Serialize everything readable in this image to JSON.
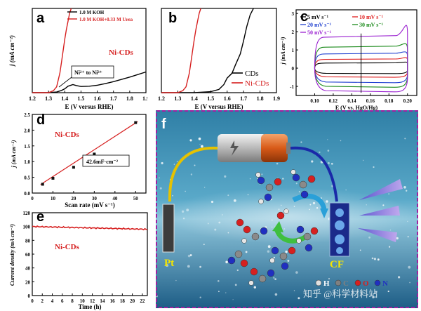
{
  "chart_data": [
    {
      "panel": "a",
      "type": "line",
      "xlabel": "E (V versus RHE)",
      "ylabel": "j (mA cm⁻²)",
      "xlim": [
        1.2,
        1.9
      ],
      "ylim": [
        0,
        260
      ],
      "xticks": [
        "1.2",
        "1.3",
        "1.4",
        "1.5",
        "1.6",
        "1.7",
        "1.8",
        "1.9"
      ],
      "legend": [
        "1.0 M KOH",
        "1.0 M KOH+0.33 M Urea"
      ],
      "legend_position": "top-left",
      "annotation": "Ni²⁺ to Ni³⁺",
      "sample_label": "Ni-CDs",
      "series": [
        {
          "name": "1.0 M KOH",
          "color": "#000000",
          "x": [
            1.2,
            1.3,
            1.35,
            1.38,
            1.4,
            1.42,
            1.45,
            1.47,
            1.5,
            1.55,
            1.6,
            1.65,
            1.7,
            1.75,
            1.8,
            1.85,
            1.9
          ],
          "y": [
            0,
            0,
            2,
            7,
            12,
            20,
            25,
            22,
            19,
            20,
            23,
            28,
            34,
            41,
            48,
            56,
            64
          ]
        },
        {
          "name": "1.0 M KOH+0.33 M Urea",
          "color": "#d62020",
          "x": [
            1.2,
            1.3,
            1.33,
            1.35,
            1.37,
            1.38,
            1.39,
            1.4,
            1.41,
            1.42,
            1.43,
            1.44
          ],
          "y": [
            0,
            0,
            6,
            18,
            60,
            95,
            130,
            165,
            195,
            220,
            245,
            260
          ]
        }
      ]
    },
    {
      "panel": "b",
      "type": "line",
      "xlabel": "E (V versus RHE)",
      "xlim": [
        1.2,
        1.9
      ],
      "ylim": [
        0,
        260
      ],
      "xticks": [
        "1.2",
        "1.3",
        "1.4",
        "1.5",
        "1.6",
        "1.7",
        "1.8",
        "1.9"
      ],
      "legend": [
        "CDs",
        "Ni-CDs"
      ],
      "legend_position": "bottom-right",
      "series": [
        {
          "name": "CDs",
          "color": "#000000",
          "x": [
            1.2,
            1.4,
            1.5,
            1.55,
            1.58,
            1.6,
            1.63,
            1.65,
            1.68,
            1.7,
            1.72,
            1.74,
            1.76
          ],
          "y": [
            0,
            0,
            3,
            10,
            25,
            45,
            60,
            85,
            120,
            160,
            205,
            240,
            260
          ]
        },
        {
          "name": "Ni-CDs",
          "color": "#d62020",
          "x": [
            1.2,
            1.3,
            1.33,
            1.35,
            1.37,
            1.38,
            1.39,
            1.4,
            1.41,
            1.42,
            1.43,
            1.44
          ],
          "y": [
            0,
            0,
            6,
            18,
            60,
            95,
            130,
            165,
            195,
            220,
            245,
            260
          ]
        }
      ]
    },
    {
      "panel": "c",
      "type": "line",
      "xlabel": "E (V vs. HgO/Hg)",
      "ylabel": "j (mA cm⁻²)",
      "xlim": [
        0.08,
        0.21
      ],
      "ylim": [
        -1.5,
        3.2
      ],
      "xticks": [
        "0.10",
        "0.12",
        "0.14",
        "0.16",
        "0.18",
        "0.20"
      ],
      "yticks": [
        "-1",
        "0",
        "1",
        "2",
        "3"
      ],
      "legend_position": "top-left",
      "series": [
        {
          "name": "5 mV s⁻¹",
          "color": "#000000",
          "anodic": 0.28,
          "cathodic": -0.3,
          "peak": 0.4
        },
        {
          "name": "10 mV s⁻¹",
          "color": "#e02020",
          "anodic": 0.48,
          "cathodic": -0.5,
          "peak": 0.7
        },
        {
          "name": "20 mV s⁻¹",
          "color": "#2040d0",
          "anodic": 0.78,
          "cathodic": -0.8,
          "peak": 1.05
        },
        {
          "name": "30 mV s⁻¹",
          "color": "#1a8a1a",
          "anodic": 1.15,
          "cathodic": -1.05,
          "peak": 1.6
        },
        {
          "name": "50 mV s⁻¹",
          "color": "#9a20d0",
          "anodic": 1.7,
          "cathodic": -1.3,
          "peak": 3.0
        }
      ]
    },
    {
      "panel": "d",
      "type": "scatter",
      "xlabel": "Scan rate (mV s⁻¹)",
      "ylabel": "j (mA cm⁻²)",
      "xlim": [
        0,
        55
      ],
      "ylim": [
        0,
        2.5
      ],
      "xticks": [
        "0",
        "10",
        "20",
        "30",
        "40",
        "50"
      ],
      "yticks": [
        "0.0",
        "0.5",
        "1.0",
        "1.5",
        "2.0",
        "2.5"
      ],
      "sample_label": "Ni-CDs",
      "annotation": "42.6mF·cm⁻²",
      "x": [
        5,
        10,
        20,
        30,
        50
      ],
      "y": [
        0.28,
        0.47,
        0.82,
        1.24,
        2.24
      ],
      "fit": {
        "slope": 0.0426,
        "intercept": 0.1
      }
    },
    {
      "panel": "e",
      "type": "line",
      "xlabel": "Time (h)",
      "ylabel": "Current density (mA cm⁻²)",
      "xlim": [
        0,
        23
      ],
      "ylim": [
        0,
        120
      ],
      "xticks": [
        "0",
        "2",
        "4",
        "6",
        "8",
        "10",
        "12",
        "14",
        "16",
        "18",
        "20",
        "22"
      ],
      "yticks": [
        "0",
        "20",
        "40",
        "60",
        "80",
        "100",
        "120"
      ],
      "sample_label": "Ni-CDs",
      "series": [
        {
          "name": "Ni-CDs",
          "color": "#d62020",
          "start": 100,
          "end": 96
        }
      ]
    }
  ],
  "panel_f": {
    "label": "f",
    "electrode_left": "Pt",
    "electrode_right": "CF",
    "legend": [
      {
        "label": "H",
        "color": "#e0e0e0"
      },
      {
        "label": "C",
        "color": "#808080"
      },
      {
        "label": "O",
        "color": "#d62020"
      },
      {
        "label": "N",
        "color": "#2030c0"
      }
    ]
  },
  "watermark": "知乎 @科学材料站"
}
